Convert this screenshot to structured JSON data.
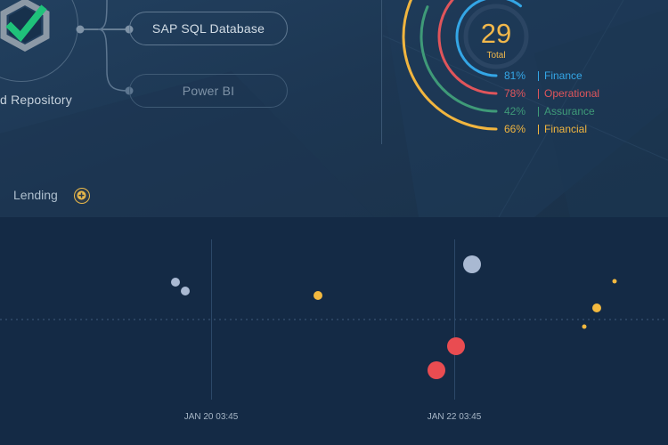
{
  "repository": {
    "label": "d Repository",
    "badge_icon": "check-shield-icon",
    "badge_color": "#1fc27a"
  },
  "data_sources": [
    {
      "label": "SAP SQL Database",
      "state": "active"
    },
    {
      "label": "Power BI",
      "state": "inactive"
    }
  ],
  "lending": {
    "label": "Lending",
    "add_icon": "plus-circle-icon",
    "accent": "#e8b84a"
  },
  "summary": {
    "total_value": "29",
    "total_label": "Total",
    "categories": [
      {
        "percent": "81%",
        "label": "Finance",
        "color": "#34a6e6",
        "fill": 0.81
      },
      {
        "percent": "78%",
        "label": "Operational",
        "color": "#e0555b",
        "fill": 0.78
      },
      {
        "percent": "42%",
        "label": "Assurance",
        "color": "#3f9a78",
        "fill": 0.42
      },
      {
        "percent": "66%",
        "label": "Financial",
        "color": "#f1b53f",
        "fill": 0.66
      }
    ]
  },
  "timeline": {
    "ticks": [
      "JAN 20 03:45",
      "JAN 22 03:45"
    ],
    "event_colors": {
      "blue": "#a9b9d2",
      "yellow": "#f3b93f",
      "red": "#e94c51"
    }
  }
}
